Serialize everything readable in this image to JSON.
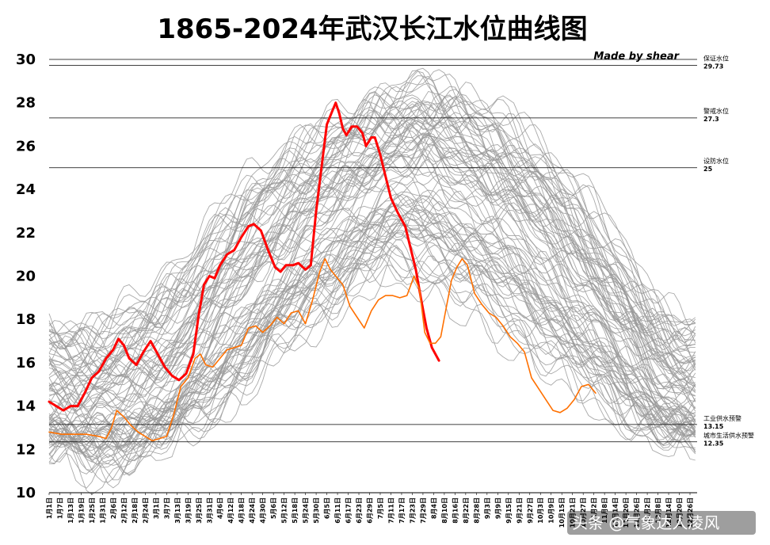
{
  "chart_data": {
    "type": "line",
    "title": "1865-2024年武汉长江水位曲线图",
    "credit": "Made by shear",
    "watermark": "头条 @气象达人凌风",
    "ylim": [
      10,
      30
    ],
    "yticks": [
      "10",
      "12",
      "14",
      "16",
      "18",
      "20",
      "22",
      "24",
      "26",
      "28",
      "30"
    ],
    "x_tick_labels": [
      "1月1日",
      "1月7日",
      "1月13日",
      "1月19日",
      "1月25日",
      "1月31日",
      "2月6日",
      "2月12日",
      "2月18日",
      "2月24日",
      "3月1日",
      "3月7日",
      "3月13日",
      "3月19日",
      "3月25日",
      "3月31日",
      "4月6日",
      "4月12日",
      "4月18日",
      "4月24日",
      "4月30日",
      "5月6日",
      "5月12日",
      "5月18日",
      "5月24日",
      "5月30日",
      "6月5日",
      "6月11日",
      "6月17日",
      "6月23日",
      "6月29日",
      "7月5日",
      "7月11日",
      "7月17日",
      "7月23日",
      "7月29日",
      "8月4日",
      "8月10日",
      "8月16日",
      "8月22日",
      "8月28日",
      "9月3日",
      "9月9日",
      "9月15日",
      "9月21日",
      "9月27日",
      "10月3日",
      "10月9日",
      "10月15日",
      "10月21日",
      "10月27日",
      "11月2日",
      "11月8日",
      "11月14日",
      "11月20日",
      "11月26日",
      "12月2日",
      "12月8日",
      "12月14日",
      "12月20日",
      "12月26日"
    ],
    "reference_lines": [
      {
        "name": "保证水位",
        "value": 29.73
      },
      {
        "name": "警戒水位",
        "value": 27.3
      },
      {
        "name": "设防水位",
        "value": 25
      },
      {
        "name": "工业供水预警",
        "value": 13.15
      },
      {
        "name": "城市生活供水预警",
        "value": 12.35
      }
    ],
    "historical_band": {
      "description_color": "#9a9a9a",
      "mean": [
        [
          1,
          13.6
        ],
        [
          15,
          13.4
        ],
        [
          32,
          13.5
        ],
        [
          46,
          13.9
        ],
        [
          60,
          14.3
        ],
        [
          75,
          15.4
        ],
        [
          91,
          16.8
        ],
        [
          106,
          18.4
        ],
        [
          121,
          19.8
        ],
        [
          136,
          21.0
        ],
        [
          152,
          22.0
        ],
        [
          167,
          23.0
        ],
        [
          182,
          24.1
        ],
        [
          197,
          24.6
        ],
        [
          213,
          24.5
        ],
        [
          228,
          24.0
        ],
        [
          244,
          23.2
        ],
        [
          259,
          22.2
        ],
        [
          274,
          21.0
        ],
        [
          289,
          19.8
        ],
        [
          305,
          18.2
        ],
        [
          320,
          16.8
        ],
        [
          335,
          15.3
        ],
        [
          350,
          14.2
        ],
        [
          365,
          13.6
        ]
      ],
      "max": [
        [
          1,
          18.6
        ],
        [
          15,
          18.0
        ],
        [
          32,
          18.2
        ],
        [
          46,
          19.0
        ],
        [
          60,
          19.8
        ],
        [
          75,
          21.0
        ],
        [
          91,
          22.5
        ],
        [
          106,
          24.0
        ],
        [
          121,
          25.4
        ],
        [
          136,
          26.5
        ],
        [
          152,
          27.2
        ],
        [
          167,
          27.8
        ],
        [
          182,
          28.6
        ],
        [
          197,
          29.1
        ],
        [
          213,
          29.6
        ],
        [
          228,
          29.3
        ],
        [
          244,
          28.6
        ],
        [
          259,
          27.8
        ],
        [
          274,
          26.8
        ],
        [
          289,
          25.6
        ],
        [
          305,
          24.0
        ],
        [
          320,
          22.0
        ],
        [
          335,
          20.0
        ],
        [
          350,
          18.5
        ],
        [
          365,
          18.6
        ]
      ],
      "min": [
        [
          1,
          11.8
        ],
        [
          15,
          11.5
        ],
        [
          32,
          10.2
        ],
        [
          46,
          11.0
        ],
        [
          60,
          11.6
        ],
        [
          75,
          12.0
        ],
        [
          91,
          12.8
        ],
        [
          106,
          13.6
        ],
        [
          121,
          14.8
        ],
        [
          136,
          16.2
        ],
        [
          152,
          17.2
        ],
        [
          167,
          18.0
        ],
        [
          182,
          19.0
        ],
        [
          197,
          19.5
        ],
        [
          213,
          19.2
        ],
        [
          228,
          18.4
        ],
        [
          244,
          17.6
        ],
        [
          259,
          16.8
        ],
        [
          274,
          16.0
        ],
        [
          289,
          15.0
        ],
        [
          305,
          14.2
        ],
        [
          320,
          13.4
        ],
        [
          335,
          12.6
        ],
        [
          350,
          12.0
        ],
        [
          365,
          11.8
        ]
      ]
    },
    "series": [
      {
        "color": "#ff0000",
        "points": [
          [
            1,
            14.2
          ],
          [
            5,
            14.0
          ],
          [
            9,
            13.8
          ],
          [
            13,
            14.0
          ],
          [
            17,
            14.0
          ],
          [
            21,
            14.6
          ],
          [
            25,
            15.3
          ],
          [
            29,
            15.6
          ],
          [
            33,
            16.2
          ],
          [
            37,
            16.6
          ],
          [
            40,
            17.1
          ],
          [
            43,
            16.8
          ],
          [
            46,
            16.2
          ],
          [
            50,
            15.9
          ],
          [
            54,
            16.5
          ],
          [
            58,
            17.0
          ],
          [
            62,
            16.4
          ],
          [
            66,
            15.8
          ],
          [
            70,
            15.4
          ],
          [
            74,
            15.2
          ],
          [
            78,
            15.5
          ],
          [
            82,
            16.4
          ],
          [
            85,
            18.2
          ],
          [
            88,
            19.6
          ],
          [
            91,
            20.0
          ],
          [
            94,
            19.9
          ],
          [
            97,
            20.5
          ],
          [
            101,
            21.0
          ],
          [
            105,
            21.2
          ],
          [
            109,
            21.8
          ],
          [
            113,
            22.3
          ],
          [
            116,
            22.4
          ],
          [
            120,
            22.1
          ],
          [
            124,
            21.2
          ],
          [
            128,
            20.4
          ],
          [
            131,
            20.2
          ],
          [
            134,
            20.5
          ],
          [
            138,
            20.5
          ],
          [
            141,
            20.6
          ],
          [
            145,
            20.3
          ],
          [
            148,
            20.5
          ],
          [
            151,
            23.0
          ],
          [
            154,
            25.0
          ],
          [
            157,
            27.0
          ],
          [
            160,
            27.6
          ],
          [
            162,
            28.0
          ],
          [
            164,
            27.5
          ],
          [
            166,
            26.8
          ],
          [
            168,
            26.5
          ],
          [
            171,
            26.9
          ],
          [
            174,
            26.9
          ],
          [
            177,
            26.6
          ],
          [
            179,
            26.0
          ],
          [
            182,
            26.4
          ],
          [
            184,
            26.4
          ],
          [
            187,
            25.6
          ],
          [
            190,
            24.6
          ],
          [
            193,
            23.6
          ],
          [
            197,
            22.9
          ],
          [
            201,
            22.3
          ],
          [
            204,
            21.3
          ],
          [
            207,
            20.3
          ],
          [
            210,
            18.9
          ],
          [
            213,
            17.6
          ],
          [
            216,
            16.7
          ],
          [
            220,
            16.1
          ]
        ]
      },
      {
        "color": "#ff7000",
        "points": [
          [
            1,
            12.8
          ],
          [
            8,
            12.7
          ],
          [
            15,
            12.7
          ],
          [
            22,
            12.7
          ],
          [
            29,
            12.6
          ],
          [
            33,
            12.5
          ],
          [
            36,
            13.0
          ],
          [
            39,
            13.8
          ],
          [
            43,
            13.5
          ],
          [
            47,
            13.1
          ],
          [
            51,
            12.8
          ],
          [
            55,
            12.6
          ],
          [
            59,
            12.4
          ],
          [
            63,
            12.5
          ],
          [
            67,
            12.6
          ],
          [
            71,
            13.6
          ],
          [
            75,
            14.9
          ],
          [
            79,
            15.3
          ],
          [
            83,
            16.2
          ],
          [
            86,
            16.4
          ],
          [
            89,
            15.9
          ],
          [
            93,
            15.8
          ],
          [
            97,
            16.2
          ],
          [
            101,
            16.6
          ],
          [
            105,
            16.7
          ],
          [
            109,
            16.8
          ],
          [
            113,
            17.6
          ],
          [
            117,
            17.7
          ],
          [
            121,
            17.4
          ],
          [
            125,
            17.7
          ],
          [
            129,
            18.1
          ],
          [
            133,
            17.8
          ],
          [
            137,
            18.3
          ],
          [
            141,
            18.4
          ],
          [
            145,
            17.8
          ],
          [
            149,
            18.9
          ],
          [
            153,
            20.2
          ],
          [
            156,
            20.8
          ],
          [
            159,
            20.3
          ],
          [
            162,
            20.0
          ],
          [
            166,
            19.6
          ],
          [
            170,
            18.6
          ],
          [
            174,
            18.1
          ],
          [
            178,
            17.6
          ],
          [
            182,
            18.4
          ],
          [
            186,
            18.9
          ],
          [
            190,
            19.1
          ],
          [
            194,
            19.1
          ],
          [
            198,
            19.0
          ],
          [
            202,
            19.1
          ],
          [
            206,
            20.0
          ],
          [
            209,
            19.4
          ],
          [
            212,
            17.4
          ],
          [
            215,
            16.9
          ],
          [
            218,
            16.9
          ],
          [
            221,
            17.2
          ],
          [
            224,
            18.5
          ],
          [
            227,
            19.8
          ],
          [
            230,
            20.4
          ],
          [
            233,
            20.8
          ],
          [
            236,
            20.5
          ],
          [
            240,
            19.2
          ],
          [
            244,
            18.7
          ],
          [
            248,
            18.3
          ],
          [
            252,
            18.1
          ],
          [
            256,
            17.7
          ],
          [
            260,
            17.2
          ],
          [
            264,
            16.9
          ],
          [
            268,
            16.5
          ],
          [
            272,
            15.3
          ],
          [
            276,
            14.8
          ],
          [
            280,
            14.3
          ],
          [
            284,
            13.8
          ],
          [
            288,
            13.7
          ],
          [
            292,
            13.9
          ],
          [
            296,
            14.3
          ],
          [
            300,
            14.9
          ],
          [
            304,
            15.0
          ],
          [
            308,
            14.6
          ]
        ]
      }
    ]
  }
}
